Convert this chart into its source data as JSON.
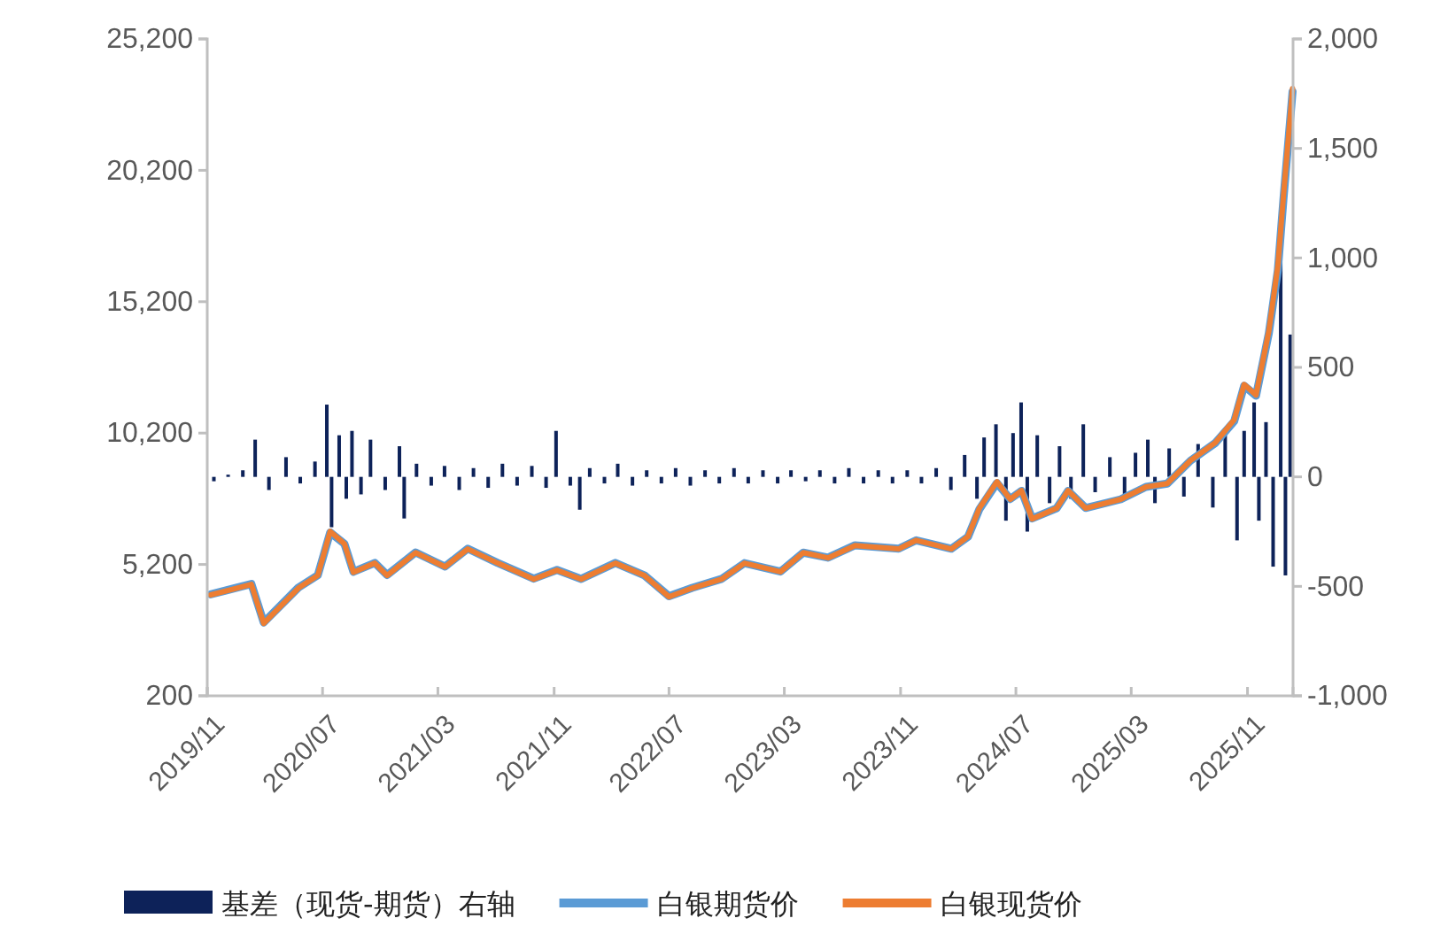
{
  "chart_data": {
    "type": "line",
    "legend": "bottom",
    "grid": false,
    "xlim": [
      "2019-11-01",
      "2026-02-05"
    ],
    "xticks": [
      {
        "value": "2019-11",
        "label": "2019/11"
      },
      {
        "value": "2020-07",
        "label": "2020/07"
      },
      {
        "value": "2021-03",
        "label": "2021/03"
      },
      {
        "value": "2021-11",
        "label": "2021/11"
      },
      {
        "value": "2022-07",
        "label": "2022/07"
      },
      {
        "value": "2023-03",
        "label": "2023/03"
      },
      {
        "value": "2023-11",
        "label": "2023/11"
      },
      {
        "value": "2024-07",
        "label": "2024/07"
      },
      {
        "value": "2025-03",
        "label": "2025/03"
      },
      {
        "value": "2025-11",
        "label": "2025/11"
      }
    ],
    "ylim": [
      200,
      25200
    ],
    "yticks": [
      200,
      {
        "value": 5200,
        "label": "5,200"
      },
      {
        "value": 10200,
        "label": "10,200"
      },
      {
        "value": 15200,
        "label": "15,200"
      },
      {
        "value": 20200,
        "label": "20,200"
      },
      {
        "value": 25200,
        "label": "25,200"
      }
    ],
    "y2lim": [
      -1000,
      2000
    ],
    "y2ticks": [
      {
        "value": -1000,
        "label": "-1,000"
      },
      {
        "value": -500,
        "label": "-500"
      },
      0,
      500,
      {
        "value": 1000,
        "label": "1,000"
      },
      {
        "value": 1500,
        "label": "1,500"
      },
      {
        "value": 2000,
        "label": "2,000"
      }
    ],
    "series": [
      {
        "name": "基差（现货-期货）右轴",
        "type": "bar",
        "axis": "y2",
        "color": "#0d2259",
        "x": [
          "2019-11-15",
          "2019-12-15",
          "2020-01-15",
          "2020-02-10",
          "2020-03-10",
          "2020-04-15",
          "2020-05-15",
          "2020-06-15",
          "2020-07-10",
          "2020-07-20",
          "2020-08-05",
          "2020-08-20",
          "2020-09-01",
          "2020-09-20",
          "2020-10-10",
          "2020-11-10",
          "2020-12-10",
          "2020-12-20",
          "2021-01-15",
          "2021-02-15",
          "2021-03-15",
          "2021-04-15",
          "2021-05-15",
          "2021-06-15",
          "2021-07-15",
          "2021-08-15",
          "2021-09-15",
          "2021-10-15",
          "2021-11-05",
          "2021-12-05",
          "2021-12-25",
          "2022-01-15",
          "2022-02-15",
          "2022-03-15",
          "2022-04-15",
          "2022-05-15",
          "2022-06-15",
          "2022-07-15",
          "2022-08-15",
          "2022-09-15",
          "2022-10-15",
          "2022-11-15",
          "2022-12-15",
          "2023-01-15",
          "2023-02-15",
          "2023-03-15",
          "2023-04-15",
          "2023-05-15",
          "2023-06-15",
          "2023-07-15",
          "2023-08-15",
          "2023-09-15",
          "2023-10-15",
          "2023-11-15",
          "2023-12-15",
          "2024-01-15",
          "2024-02-15",
          "2024-03-15",
          "2024-04-10",
          "2024-04-25",
          "2024-05-20",
          "2024-06-10",
          "2024-06-25",
          "2024-07-12",
          "2024-07-25",
          "2024-08-15",
          "2024-09-10",
          "2024-10-01",
          "2024-10-25",
          "2024-11-20",
          "2024-12-15",
          "2025-01-15",
          "2025-02-15",
          "2025-03-10",
          "2025-04-05",
          "2025-04-20",
          "2025-05-20",
          "2025-06-20",
          "2025-07-20",
          "2025-08-20",
          "2025-09-15",
          "2025-10-10",
          "2025-10-25",
          "2025-11-15",
          "2025-11-25",
          "2025-12-10",
          "2025-12-25",
          "2026-01-10",
          "2026-01-20",
          "2026-01-30"
        ],
        "values": [
          -20,
          10,
          30,
          170,
          -60,
          90,
          -30,
          70,
          330,
          -230,
          190,
          -100,
          210,
          -80,
          170,
          -60,
          140,
          -190,
          60,
          -40,
          50,
          -60,
          40,
          -50,
          60,
          -40,
          50,
          -50,
          210,
          -40,
          -150,
          40,
          -30,
          60,
          -40,
          30,
          -30,
          40,
          -40,
          30,
          -30,
          40,
          -30,
          30,
          -30,
          30,
          -20,
          30,
          -30,
          40,
          -30,
          30,
          -30,
          30,
          -30,
          40,
          -60,
          100,
          -100,
          180,
          240,
          -200,
          200,
          340,
          -250,
          190,
          -120,
          140,
          -100,
          240,
          -70,
          90,
          -80,
          110,
          170,
          -120,
          130,
          -90,
          150,
          -140,
          200,
          -290,
          210,
          340,
          -200,
          250,
          -410,
          980,
          -450,
          650
        ]
      },
      {
        "name": "白银期货价",
        "color": "#5b9bd5",
        "x": [
          "2019-11-08",
          "2020-02-02",
          "2020-02-28",
          "2020-05-11",
          "2020-06-21",
          "2020-07-17",
          "2020-08-16",
          "2020-09-04",
          "2020-10-19",
          "2020-11-14",
          "2021-01-13",
          "2021-03-16",
          "2021-05-03",
          "2021-07-05",
          "2021-09-19",
          "2021-11-07",
          "2021-12-28",
          "2022-03-10",
          "2022-05-10",
          "2022-07-01",
          "2022-08-19",
          "2022-10-20",
          "2022-12-07",
          "2023-02-21",
          "2023-04-10",
          "2023-06-01",
          "2023-07-28",
          "2023-10-28",
          "2023-12-04",
          "2024-02-16",
          "2024-03-22",
          "2024-04-15",
          "2024-05-22",
          "2024-06-19",
          "2024-07-13",
          "2024-08-04",
          "2024-09-25",
          "2024-10-19",
          "2024-11-25",
          "2025-02-07",
          "2025-04-01",
          "2025-05-16",
          "2025-07-04",
          "2025-08-25",
          "2025-10-04",
          "2025-10-25",
          "2025-11-19",
          "2025-12-16",
          "2026-01-04",
          "2026-01-16",
          "2026-02-04"
        ],
        "values": [
          4060,
          4460,
          2990,
          4320,
          4790,
          6420,
          5990,
          4920,
          5260,
          4800,
          5660,
          5120,
          5800,
          5260,
          4660,
          4990,
          4650,
          5260,
          4790,
          3990,
          4310,
          4650,
          5250,
          4930,
          5650,
          5460,
          5930,
          5800,
          6120,
          5800,
          6250,
          7300,
          8300,
          7690,
          8000,
          6950,
          7340,
          8000,
          7350,
          7680,
          8150,
          8280,
          9150,
          9820,
          10650,
          12000,
          11620,
          14000,
          16400,
          19150,
          23200
        ]
      },
      {
        "name": "白银现货价",
        "color": "#ed7d31",
        "x": [
          "2019-11-08",
          "2020-02-02",
          "2020-02-28",
          "2020-05-11",
          "2020-06-21",
          "2020-07-17",
          "2020-08-16",
          "2020-09-04",
          "2020-10-19",
          "2020-11-14",
          "2021-01-13",
          "2021-03-16",
          "2021-05-03",
          "2021-07-05",
          "2021-09-19",
          "2021-11-07",
          "2021-12-28",
          "2022-03-10",
          "2022-05-10",
          "2022-07-01",
          "2022-08-19",
          "2022-10-20",
          "2022-12-07",
          "2023-02-21",
          "2023-04-10",
          "2023-06-01",
          "2023-07-28",
          "2023-10-28",
          "2023-12-04",
          "2024-02-16",
          "2024-03-22",
          "2024-04-15",
          "2024-05-22",
          "2024-06-19",
          "2024-07-13",
          "2024-08-04",
          "2024-09-25",
          "2024-10-19",
          "2024-11-25",
          "2025-02-07",
          "2025-04-01",
          "2025-05-16",
          "2025-07-04",
          "2025-08-25",
          "2025-10-04",
          "2025-10-25",
          "2025-11-19",
          "2025-12-16",
          "2026-01-04",
          "2026-01-16",
          "2026-02-04"
        ],
        "values": [
          4040,
          4440,
          2960,
          4300,
          4780,
          6460,
          5990,
          4900,
          5250,
          4780,
          5650,
          5110,
          5790,
          5250,
          4640,
          4980,
          4640,
          5250,
          4780,
          3970,
          4300,
          4640,
          5250,
          4920,
          5650,
          5450,
          5920,
          5790,
          6120,
          5790,
          6260,
          7340,
          8350,
          7680,
          8010,
          6930,
          7340,
          8010,
          7340,
          7680,
          8150,
          8280,
          9160,
          9830,
          10710,
          12050,
          11650,
          14080,
          16570,
          19270,
          23310
        ]
      }
    ]
  }
}
